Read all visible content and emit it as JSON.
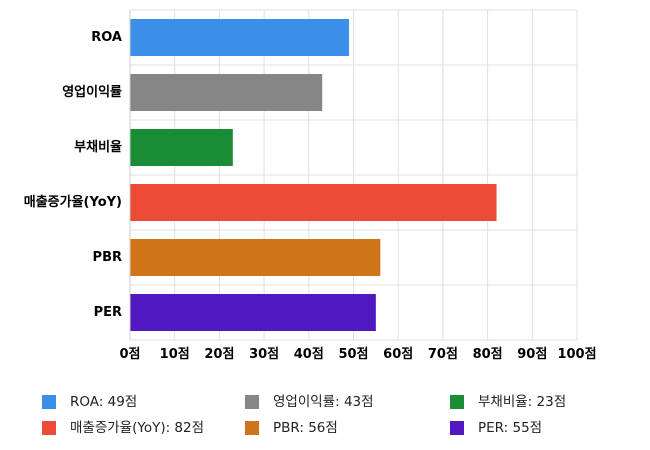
{
  "chart_data": {
    "type": "bar",
    "orientation": "horizontal",
    "categories": [
      "ROA",
      "영업이익률",
      "부채비율",
      "매출증가율(YoY)",
      "PBR",
      "PER"
    ],
    "values": [
      49,
      43,
      23,
      82,
      56,
      55
    ],
    "colors": [
      "#3b8fe8",
      "#868686",
      "#1b8c36",
      "#ec4c37",
      "#cf7418",
      "#5018c0"
    ],
    "xlim": [
      0,
      100
    ],
    "x_ticks": [
      0,
      10,
      20,
      30,
      40,
      50,
      60,
      70,
      80,
      90,
      100
    ],
    "tick_suffix": "점",
    "grid": true,
    "legend": {
      "placement": "bottom",
      "entries": [
        "ROA: 49점",
        "영업이익률: 43점",
        "부채비율: 23점",
        "매출증가율(YoY): 82점",
        "PBR: 56점",
        "PER: 55점"
      ]
    }
  }
}
